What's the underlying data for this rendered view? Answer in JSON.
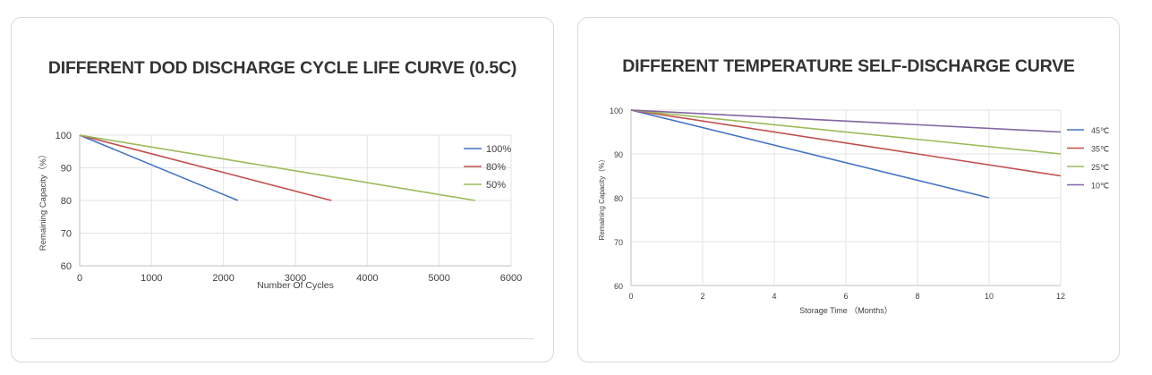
{
  "charts": [
    {
      "title": "DIFFERENT DOD DISCHARGE CYCLE LIFE CURVE (0.5C)"
    },
    {
      "title": "DIFFERENT TEMPERATURE SELF-DISCHARGE CURVE"
    }
  ],
  "chart_data": [
    {
      "type": "line",
      "title": "DIFFERENT DOD DISCHARGE CYCLE LIFE CURVE (0.5C)",
      "xlabel": "Number Of Cycles",
      "ylabel": "Remaining Capacity（%）",
      "xlim": [
        0,
        6000
      ],
      "ylim": [
        60,
        100
      ],
      "xticks": [
        0,
        1000,
        2000,
        3000,
        4000,
        5000,
        6000
      ],
      "yticks": [
        60,
        70,
        80,
        90,
        100
      ],
      "grid": true,
      "legend": "top-right",
      "series": [
        {
          "name": "100%",
          "color": "#4472c4",
          "x": [
            0,
            2200
          ],
          "y": [
            100,
            80
          ]
        },
        {
          "name": "80%",
          "color": "#c0504d",
          "x": [
            0,
            3500
          ],
          "y": [
            100,
            80
          ]
        },
        {
          "name": "50%",
          "color": "#9bbb59",
          "x": [
            0,
            5500
          ],
          "y": [
            100,
            80
          ]
        }
      ]
    },
    {
      "type": "line",
      "title": "DIFFERENT TEMPERATURE SELF-DISCHARGE CURVE",
      "xlabel": "Storage Time （Months）",
      "ylabel": "Remaining Capacity（%）",
      "xlim": [
        0,
        12
      ],
      "ylim": [
        60,
        100
      ],
      "xticks": [
        0,
        2,
        4,
        6,
        8,
        10,
        12
      ],
      "yticks": [
        60,
        70,
        80,
        90,
        100
      ],
      "grid": true,
      "legend": "right",
      "series": [
        {
          "name": "45℃",
          "color": "#4472c4",
          "x": [
            0,
            10
          ],
          "y": [
            100,
            80
          ]
        },
        {
          "name": "35℃",
          "color": "#c0504d",
          "x": [
            0,
            12
          ],
          "y": [
            100,
            85
          ]
        },
        {
          "name": "25℃",
          "color": "#9bbb59",
          "x": [
            0,
            12
          ],
          "y": [
            100,
            90
          ]
        },
        {
          "name": "10℃",
          "color": "#8064a2",
          "x": [
            0,
            12
          ],
          "y": [
            100,
            95
          ]
        }
      ]
    }
  ]
}
